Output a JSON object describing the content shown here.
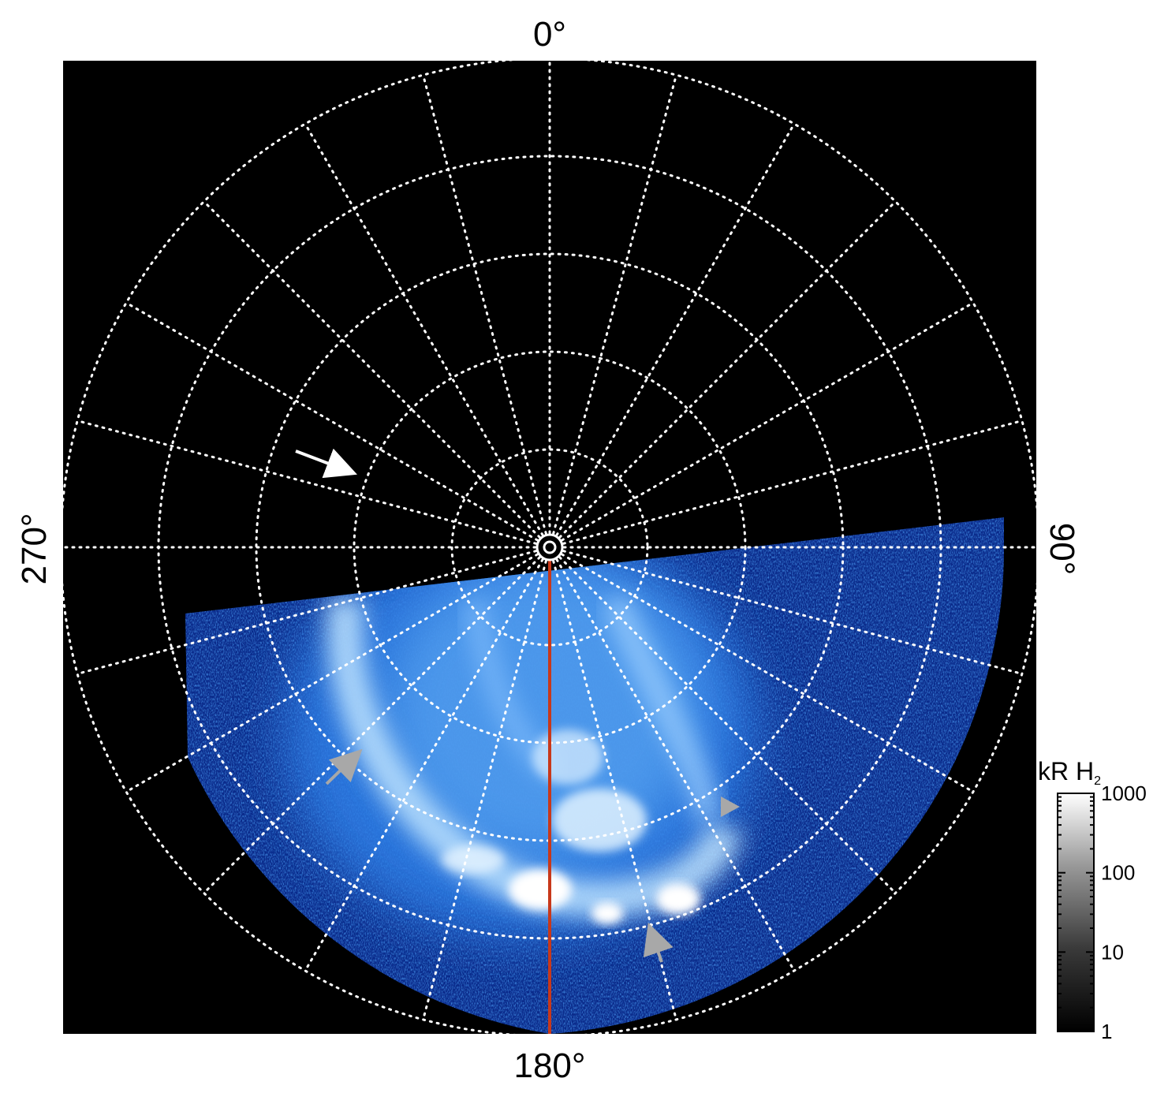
{
  "figure": {
    "longitude_labels": {
      "top": "0°",
      "right": "90°",
      "bottom": "180°",
      "left": "270°"
    },
    "colorbar": {
      "unit": "kR H",
      "unit_subscript": "2",
      "scale": "log",
      "range": [
        1,
        1000
      ],
      "ticks": [
        {
          "value": 1000,
          "label": "1000"
        },
        {
          "value": 100,
          "label": "100"
        },
        {
          "value": 10,
          "label": "10"
        },
        {
          "value": 1,
          "label": "1"
        }
      ],
      "colormap": "black-to-white grayscale"
    },
    "image": {
      "description_colors": {
        "background": "#000000",
        "emission_dark": "#0a2a8a",
        "emission_mid": "#2f7fe6",
        "emission_bright": "#bfe4ff",
        "emission_peak": "#ffffff",
        "grid": "#ffffff",
        "meridian_line": "#c8381a",
        "arrow_primary": "#ffffff",
        "arrow_secondary": "#a8a8a8"
      },
      "grid": {
        "meridian_step_deg": 15,
        "ring_count": 5,
        "style": "dotted"
      }
    }
  }
}
